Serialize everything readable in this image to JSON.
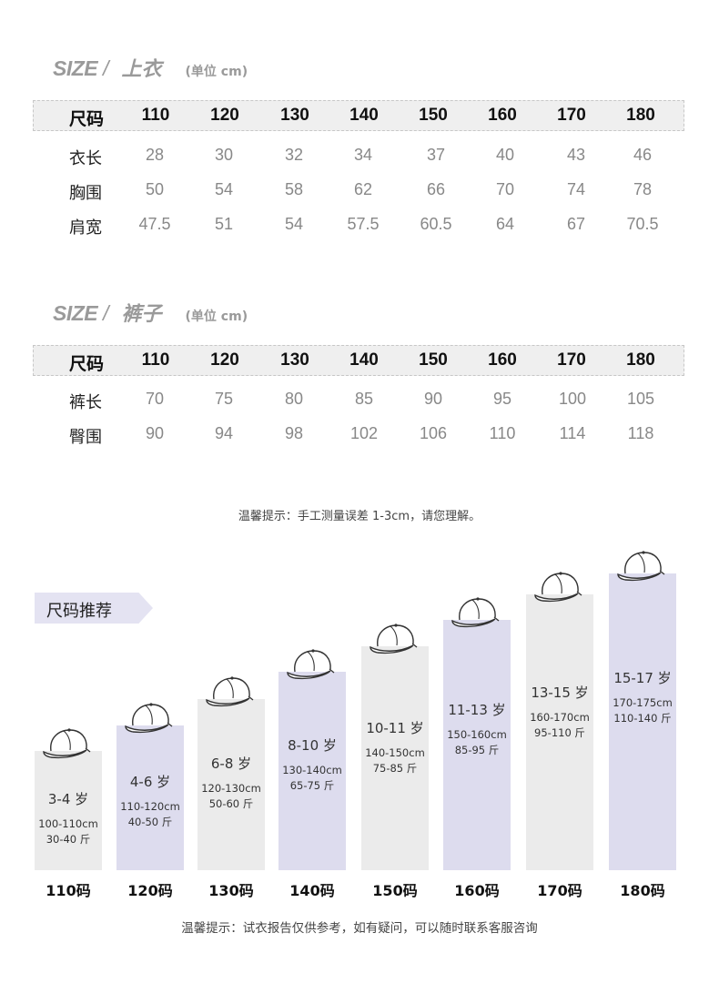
{
  "top_section": {
    "size_word": "SIZE",
    "slash": "/",
    "title": "上衣",
    "unit": "(单位 cm)",
    "header_label": "尺码",
    "sizes": [
      "110",
      "120",
      "130",
      "140",
      "150",
      "160",
      "170",
      "180"
    ],
    "rows": [
      {
        "label": "衣长",
        "values": [
          "28",
          "30",
          "32",
          "34",
          "37",
          "40",
          "43",
          "46"
        ]
      },
      {
        "label": "胸围",
        "values": [
          "50",
          "54",
          "58",
          "62",
          "66",
          "70",
          "74",
          "78"
        ]
      },
      {
        "label": "肩宽",
        "values": [
          "47.5",
          "51",
          "54",
          "57.5",
          "60.5",
          "64",
          "67",
          "70.5"
        ]
      }
    ]
  },
  "pants_section": {
    "size_word": "SIZE",
    "slash": "/",
    "title": "裤子",
    "unit": "(单位 cm)",
    "header_label": "尺码",
    "sizes": [
      "110",
      "120",
      "130",
      "140",
      "150",
      "160",
      "170",
      "180"
    ],
    "rows": [
      {
        "label": "裤长",
        "values": [
          "70",
          "75",
          "80",
          "85",
          "90",
          "95",
          "100",
          "105"
        ]
      },
      {
        "label": "臀围",
        "values": [
          "90",
          "94",
          "98",
          "102",
          "106",
          "110",
          "114",
          "118"
        ]
      }
    ]
  },
  "note_measure": "温馨提示：手工测量误差 1-3cm，请您理解。",
  "recommend": {
    "tag": "尺码推荐",
    "colors": {
      "light": "#ebebeb",
      "lavender": "#dddcee"
    },
    "items": [
      {
        "size_label": "110码",
        "age": "3-4 岁",
        "height": "100-110cm",
        "weight": "30-40 斤",
        "tone": "light"
      },
      {
        "size_label": "120码",
        "age": "4-6 岁",
        "height": "110-120cm",
        "weight": "40-50 斤",
        "tone": "lavender"
      },
      {
        "size_label": "130码",
        "age": "6-8 岁",
        "height": "120-130cm",
        "weight": "50-60 斤",
        "tone": "light"
      },
      {
        "size_label": "140码",
        "age": "8-10 岁",
        "height": "130-140cm",
        "weight": "65-75 斤",
        "tone": "lavender"
      },
      {
        "size_label": "150码",
        "age": "10-11 岁",
        "height": "140-150cm",
        "weight": "75-85 斤",
        "tone": "light"
      },
      {
        "size_label": "160码",
        "age": "11-13 岁",
        "height": "150-160cm",
        "weight": "85-95 斤",
        "tone": "lavender"
      },
      {
        "size_label": "170码",
        "age": "13-15 岁",
        "height": "160-170cm",
        "weight": "95-110 斤",
        "tone": "light"
      },
      {
        "size_label": "180码",
        "age": "15-17 岁",
        "height": "170-175cm",
        "weight": "110-140 斤",
        "tone": "lavender"
      }
    ]
  },
  "note_report": "温馨提示：试衣报告仅供参考，如有疑问，可以随时联系客服咨询"
}
